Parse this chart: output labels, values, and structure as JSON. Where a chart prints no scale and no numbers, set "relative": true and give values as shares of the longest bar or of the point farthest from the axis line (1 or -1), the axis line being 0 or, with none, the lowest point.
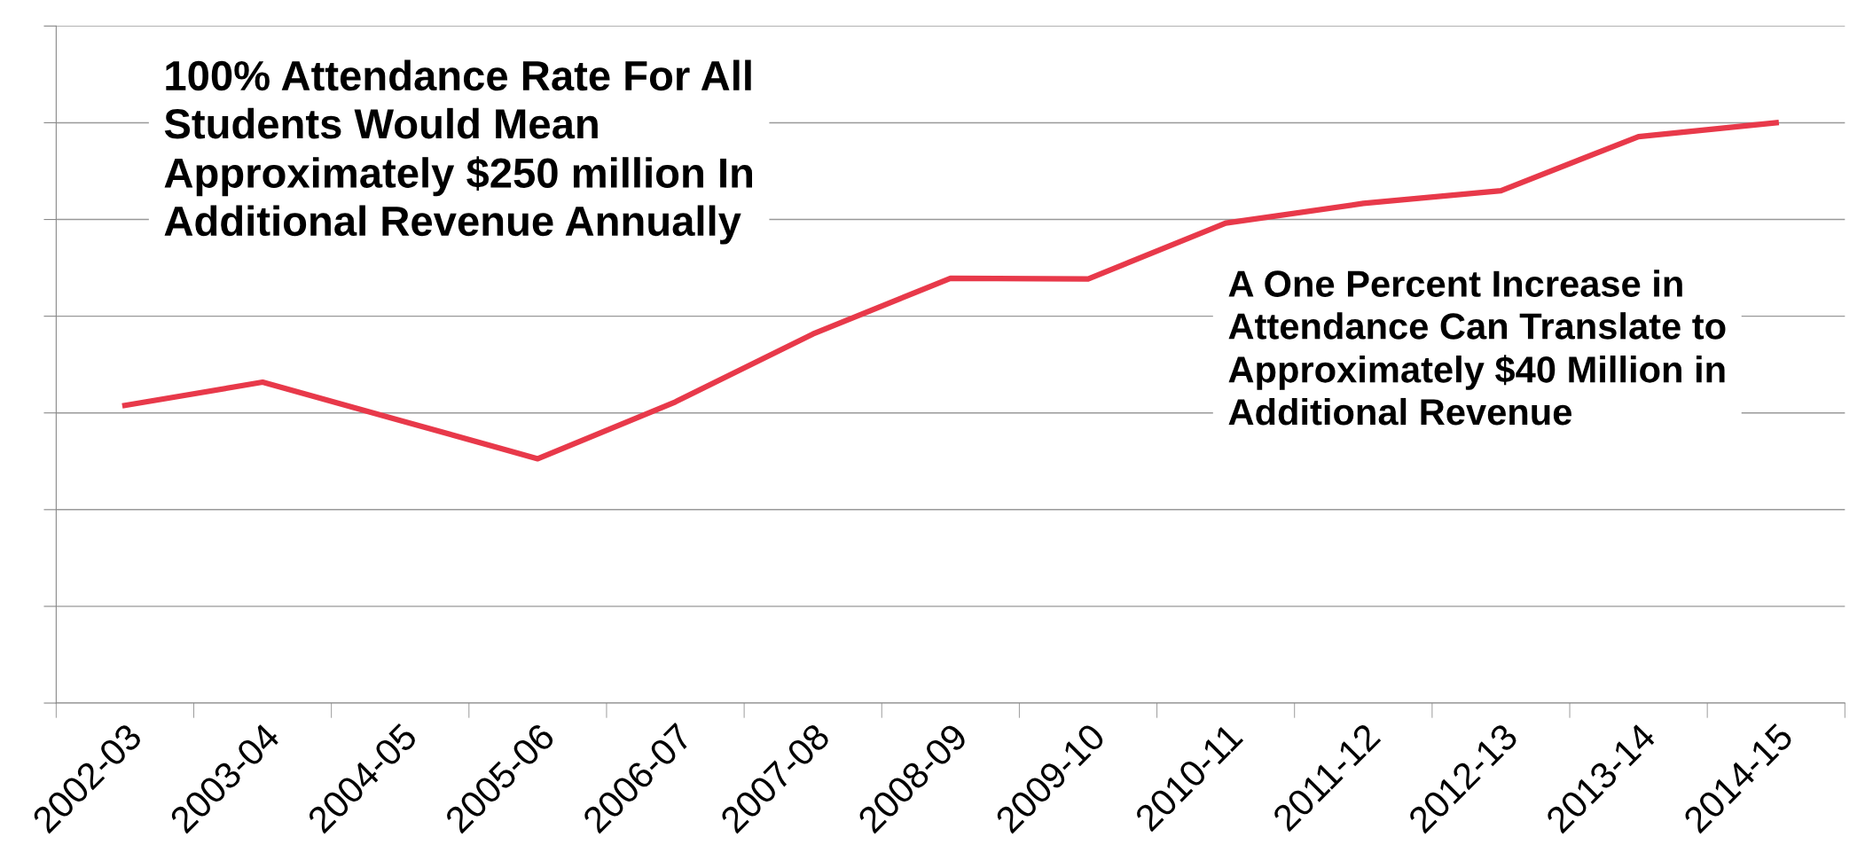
{
  "chart_data": {
    "type": "line",
    "relative": true,
    "categories": [
      "2002-03",
      "2003-04",
      "2004-05",
      "2005-06",
      "2006-07",
      "2007-08",
      "2008-09",
      "2009-10",
      "2010-11",
      "2011-12",
      "2012-13",
      "2013-14",
      "2014-15"
    ],
    "series": [
      {
        "color": "#e8394a",
        "values": [
          0.513,
          0.553,
          0.487,
          0.421,
          0.519,
          0.636,
          0.732,
          0.731,
          0.827,
          0.861,
          0.883,
          0.976,
          1.0
        ]
      }
    ],
    "grid": "y",
    "marker": "none",
    "line_style": "solid",
    "annotations": [
      "100% Attendance Rate For All\nStudents Would Mean\nApproximately $250 million In\nAdditional Revenue Annually",
      "A One Percent Increase in\nAttendance Can Translate to\nApproximately $40 Million in\nAdditional Revenue"
    ]
  }
}
